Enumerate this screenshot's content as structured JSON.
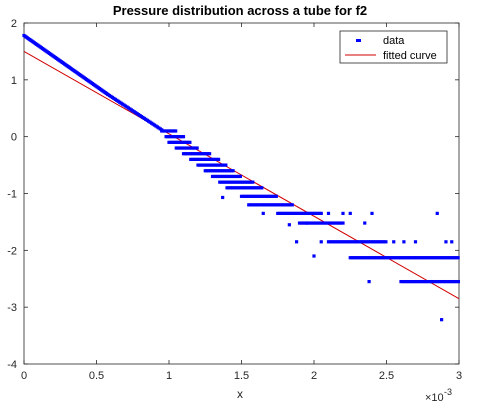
{
  "chart_data": {
    "type": "scatter",
    "title": "Pressure distribution across a tube for f2",
    "xlabel": "x",
    "ylabel": "",
    "x_exponent_label": "×10",
    "x_exponent_power": "-3",
    "xlim": [
      0,
      0.003
    ],
    "ylim": [
      -4,
      2
    ],
    "xticks": [
      0,
      0.0005,
      0.001,
      0.0015,
      0.002,
      0.0025,
      0.003
    ],
    "xtick_labels": [
      "0",
      "0.5",
      "1",
      "1.5",
      "2",
      "2.5",
      "3"
    ],
    "yticks": [
      -4,
      -3,
      -2,
      -1,
      0,
      1,
      2
    ],
    "ytick_labels": [
      "-4",
      "-3",
      "-2",
      "-1",
      "0",
      "1",
      "2"
    ],
    "grid": false,
    "legend_position": "top-right",
    "colors": {
      "data": "#0000ff",
      "fit": "#d00000"
    },
    "series": [
      {
        "name": "data",
        "kind": "scatter",
        "segments": [
          {
            "x0": 0.0,
            "x1": 0.00058,
            "y0": 1.78,
            "y1": 0.74,
            "step": 8e-06
          },
          {
            "x0": 0.00058,
            "x1": 0.00095,
            "y0": 0.74,
            "y1": 0.12,
            "step": 1e-05
          }
        ],
        "bands": [
          {
            "y": 0.1,
            "x0": 0.00095,
            "x1": 0.00105
          },
          {
            "y": 0.0,
            "x0": 0.00098,
            "x1": 0.0011
          },
          {
            "y": -0.1,
            "x0": 0.001,
            "x1": 0.00115
          },
          {
            "y": -0.2,
            "x0": 0.00105,
            "x1": 0.0012
          },
          {
            "y": -0.3,
            "x0": 0.0011,
            "x1": 0.00128
          },
          {
            "y": -0.4,
            "x0": 0.00115,
            "x1": 0.00135
          },
          {
            "y": -0.5,
            "x0": 0.0012,
            "x1": 0.0014
          },
          {
            "y": -0.6,
            "x0": 0.00125,
            "x1": 0.00145
          },
          {
            "y": -0.7,
            "x0": 0.0013,
            "x1": 0.0015
          },
          {
            "y": -0.8,
            "x0": 0.00135,
            "x1": 0.00158
          },
          {
            "y": -0.9,
            "x0": 0.0014,
            "x1": 0.00165
          },
          {
            "y": -1.05,
            "x0": 0.0015,
            "x1": 0.00175
          },
          {
            "y": -1.2,
            "x0": 0.00155,
            "x1": 0.00185
          },
          {
            "y": -1.35,
            "x0": 0.00175,
            "x1": 0.00205
          },
          {
            "y": -1.52,
            "x0": 0.0019,
            "x1": 0.0022
          },
          {
            "y": -1.85,
            "x0": 0.0021,
            "x1": 0.0025
          },
          {
            "y": -2.13,
            "x0": 0.00225,
            "x1": 0.003
          },
          {
            "y": -2.55,
            "x0": 0.0026,
            "x1": 0.003
          }
        ],
        "outliers": [
          [
            0.00137,
            -1.07
          ],
          [
            0.00165,
            -1.35
          ],
          [
            0.00183,
            -1.55
          ],
          [
            0.00188,
            -1.85
          ],
          [
            0.00195,
            -1.52
          ],
          [
            0.002,
            -2.1
          ],
          [
            0.00205,
            -1.85
          ],
          [
            0.0021,
            -1.35
          ],
          [
            0.0022,
            -1.35
          ],
          [
            0.00225,
            -1.35
          ],
          [
            0.00235,
            -1.52
          ],
          [
            0.0024,
            -1.35
          ],
          [
            0.00238,
            -2.55
          ],
          [
            0.00255,
            -1.85
          ],
          [
            0.00262,
            -1.85
          ],
          [
            0.0027,
            -1.85
          ],
          [
            0.00285,
            -1.35
          ],
          [
            0.00288,
            -3.22
          ],
          [
            0.00291,
            -1.85
          ],
          [
            0.00295,
            -1.85
          ]
        ]
      },
      {
        "name": "fitted curve",
        "kind": "line",
        "x": [
          0,
          0.003
        ],
        "y": [
          1.5,
          -2.85
        ]
      }
    ]
  }
}
